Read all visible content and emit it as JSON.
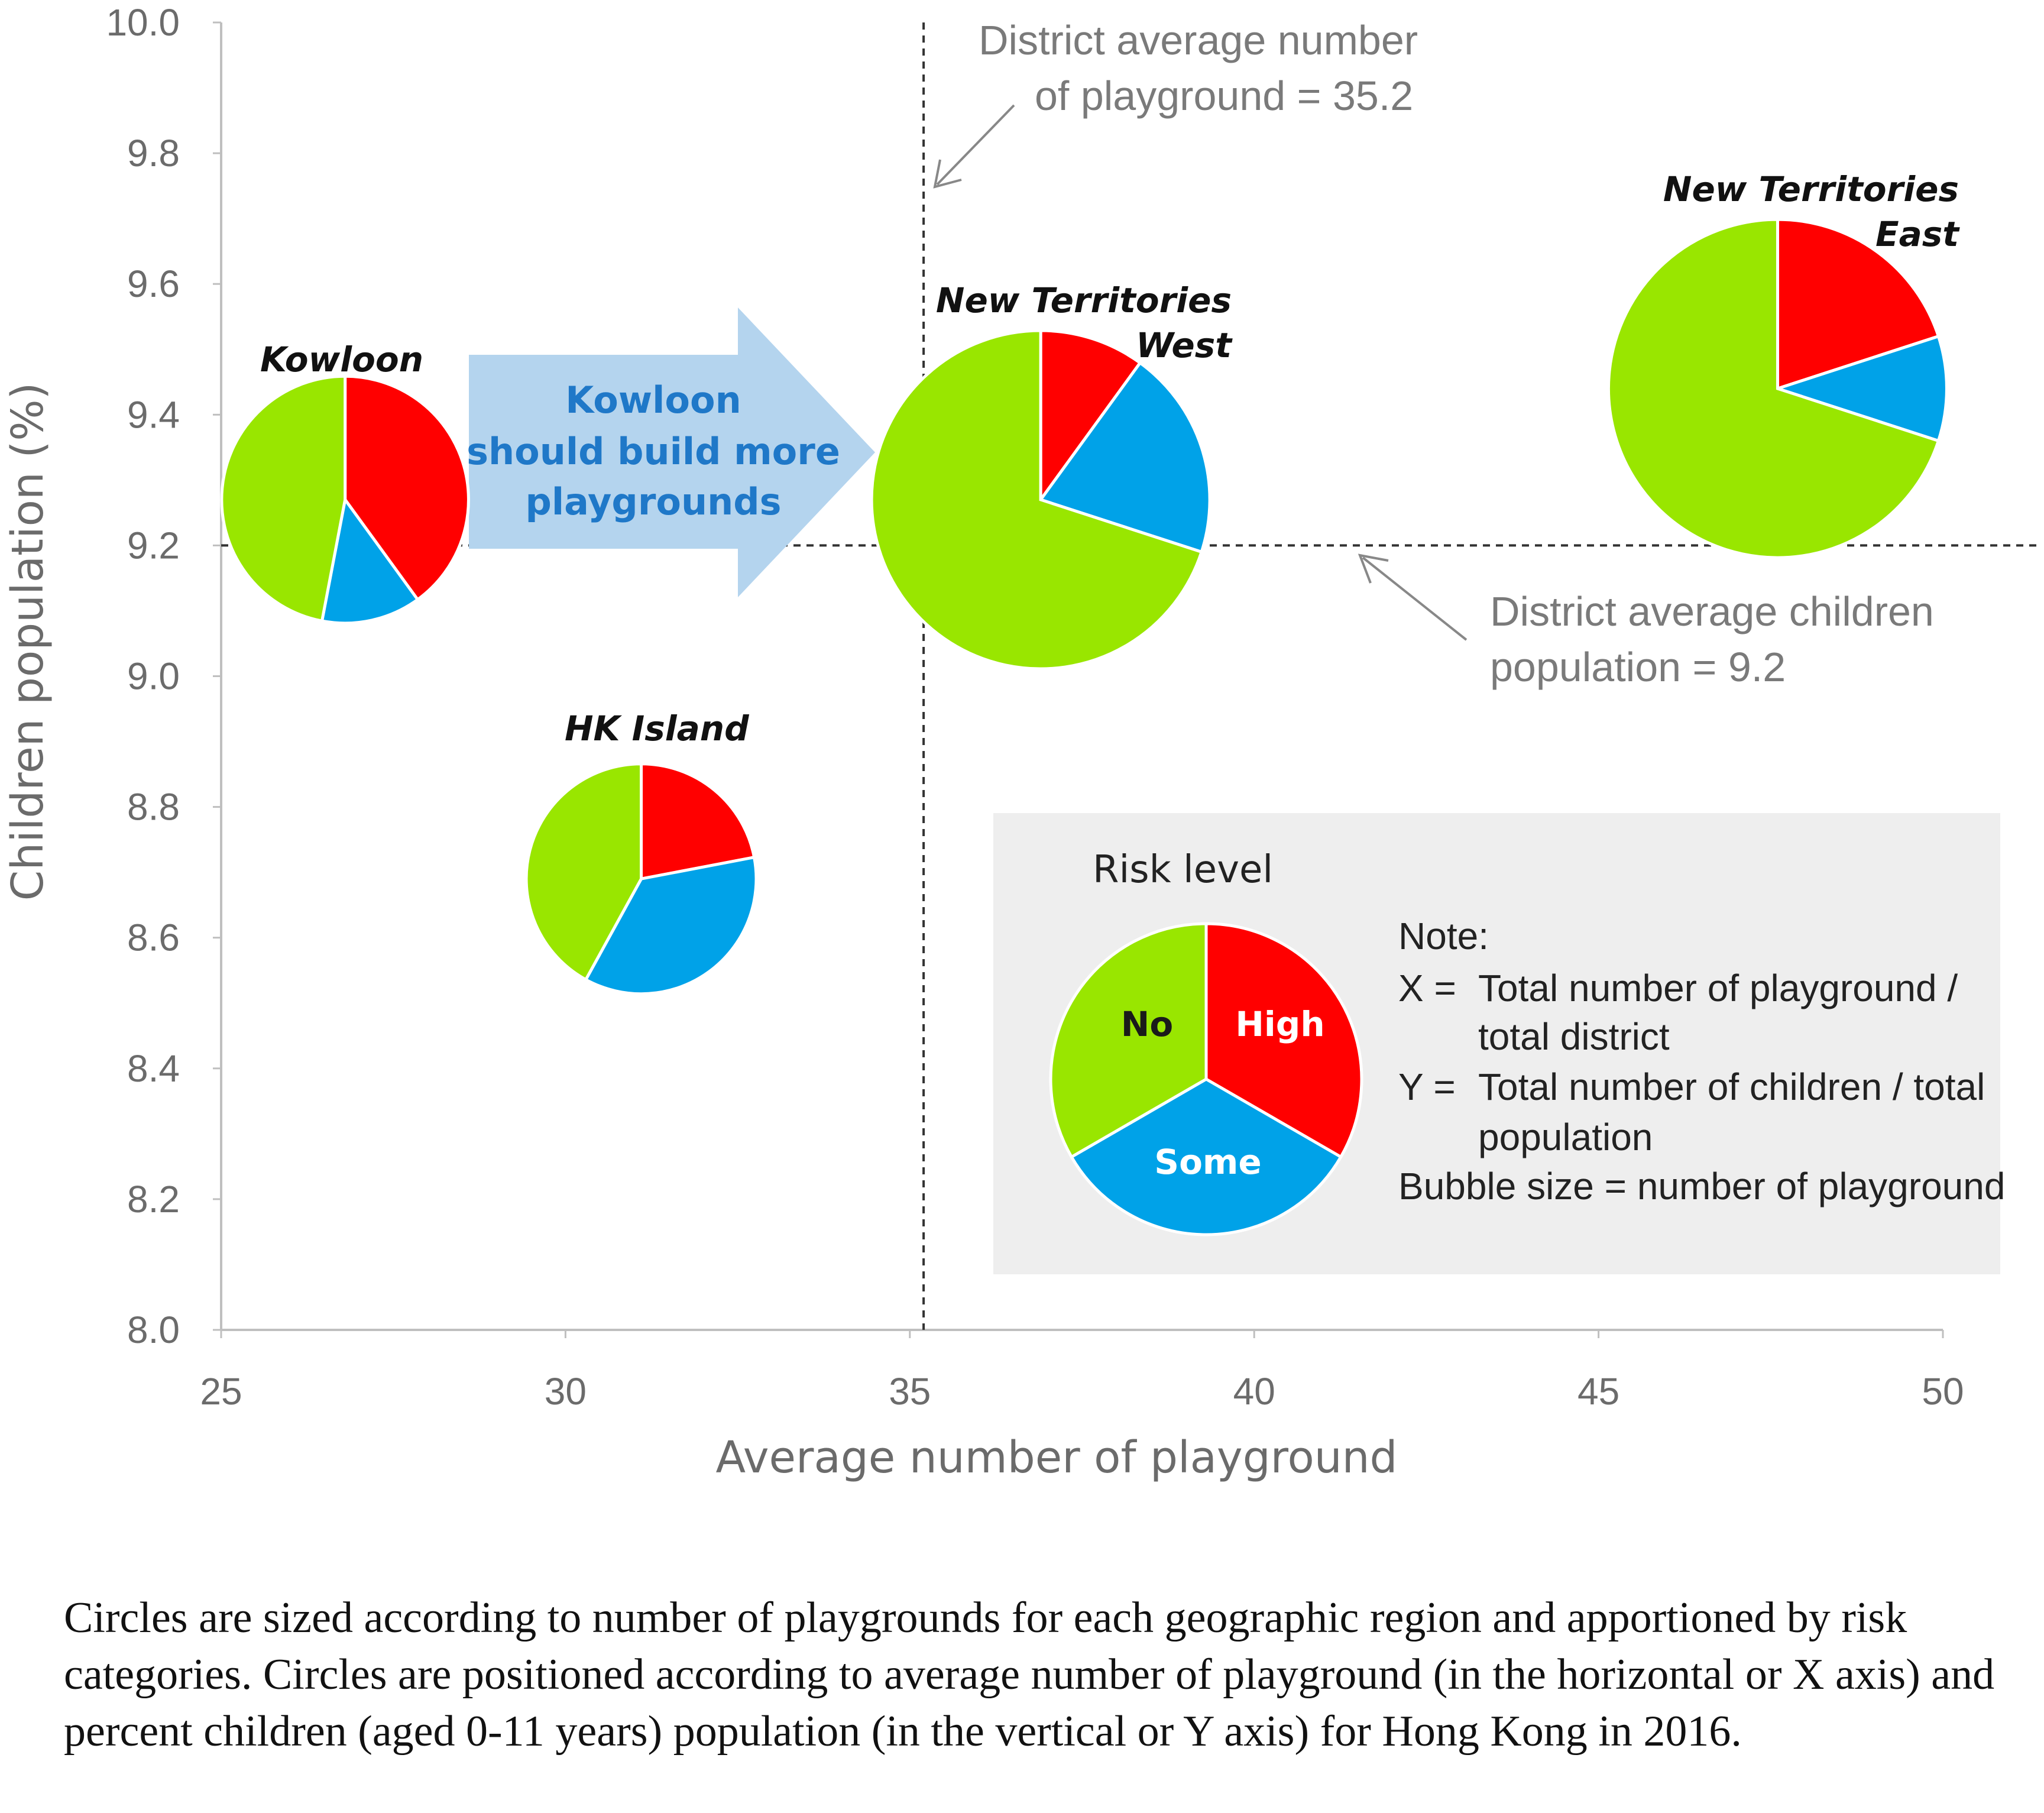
{
  "chart_data": {
    "type": "bubble-pie",
    "xlabel": "Average number of playground",
    "ylabel": "Children population (%)",
    "xlim": [
      25,
      50
    ],
    "ylim": [
      8.0,
      10.0
    ],
    "x_ticks": [
      "25",
      "30",
      "35",
      "40",
      "45",
      "50"
    ],
    "y_ticks": [
      "8.0",
      "8.2",
      "8.4",
      "8.6",
      "8.8",
      "9.0",
      "9.2",
      "9.4",
      "9.6",
      "9.8",
      "10.0"
    ],
    "colors": {
      "high": "#ff0000",
      "some": "#00a2e8",
      "no": "#99e600"
    },
    "regions": [
      {
        "name": "Kowloon",
        "x": 26.8,
        "y": 9.27,
        "size_rel": 0.73,
        "shares": {
          "high": 0.4,
          "some": 0.13,
          "no": 0.47
        }
      },
      {
        "name": "HK Island",
        "x": 31.1,
        "y": 8.69,
        "size_rel": 0.68,
        "shares": {
          "high": 0.22,
          "some": 0.36,
          "no": 0.42
        }
      },
      {
        "name_line1": "New Territories",
        "name_line2": "West",
        "x": 36.9,
        "y": 9.27,
        "size_rel": 1.0,
        "shares": {
          "high": 0.1,
          "some": 0.2,
          "no": 0.7
        }
      },
      {
        "name_line1": "New Territories",
        "name_line2": "East",
        "x": 47.6,
        "y": 9.44,
        "size_rel": 1.0,
        "shares": {
          "high": 0.2,
          "some": 0.1,
          "no": 0.7
        }
      }
    ],
    "reference_lines": [
      {
        "axis": "x",
        "value": 35.2,
        "label_line1": "District average number",
        "label_line2": "of playground = 35.2"
      },
      {
        "axis": "y",
        "value": 9.2,
        "label_line1": "District average children",
        "label_line2": "population = 9.2"
      }
    ],
    "arrow_annotation": {
      "line1": "Kowloon",
      "line2": "should build more",
      "line3": "playgrounds"
    },
    "legend": {
      "title": "Risk level",
      "high": "High",
      "some": "Some",
      "no": "No",
      "note_heading": "Note:",
      "x_key": "X =",
      "x_text_line1": "Total  number of playground /",
      "x_text_line2": "total  district",
      "y_key": "Y =",
      "y_text_line1": "Total  number of children / total",
      "y_text_line2": "population",
      "bubble_note": "Bubble size =  number of playground"
    }
  },
  "caption": "Circles are sized according to number of playgrounds for each geographic region and apportioned by risk categories. Circles are positioned according to average number of playground (in the horizontal or X axis) and percent children (aged 0-11 years) population (in the vertical or Y axis) for Hong Kong in 2016."
}
